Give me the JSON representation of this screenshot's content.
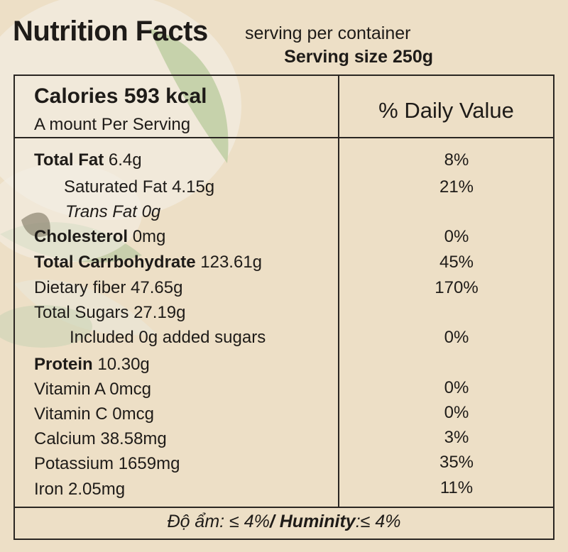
{
  "header": {
    "title": "Nutrition Facts",
    "serving_per_container": "serving per container",
    "serving_size": "Serving size 250g"
  },
  "calories": {
    "label": "Calories 593 kcal",
    "sub_label": "A mount Per Serving"
  },
  "daily_value_header": "% Daily Value",
  "rows": [
    {
      "label": "Total Fat",
      "amount": " 6.4g",
      "pct": "8%"
    },
    {
      "label": "Saturated Fat 4.15g",
      "pct": "21%"
    },
    {
      "label": "Trans Fat 0g",
      "pct": ""
    },
    {
      "label": "Cholesterol",
      "amount": " 0mg",
      "pct": "0%"
    },
    {
      "label": "Total Carrbohydrate",
      "amount": " 123.61g",
      "pct": "45%"
    },
    {
      "label": "Dietary fiber 47.65g",
      "pct": "170%"
    },
    {
      "label": "Total Sugars 27.19g",
      "pct": ""
    },
    {
      "label": "Included 0g added sugars",
      "pct": "0%"
    },
    {
      "label": "Protein",
      "amount": " 10.30g",
      "pct": ""
    },
    {
      "label": "Vitamin A 0mcg",
      "pct": "0%"
    },
    {
      "label": "Vitamin C 0mcg",
      "pct": "0%"
    },
    {
      "label": "Calcium 38.58mg",
      "pct": "3%"
    },
    {
      "label": "Potassium 1659mg",
      "pct": "35%"
    },
    {
      "label": "Iron 2.05mg",
      "pct": "11%"
    }
  ],
  "footer": {
    "moisture_vi": "Độ ẩm: ≤ 4%",
    "moisture_en": "/ Huminity",
    "moisture_en_value": ":≤  4%"
  },
  "colors": {
    "background": "#eddfc6",
    "text": "#1e1b18",
    "border": "#2a2622",
    "leaf_green": "#a9c08a"
  }
}
